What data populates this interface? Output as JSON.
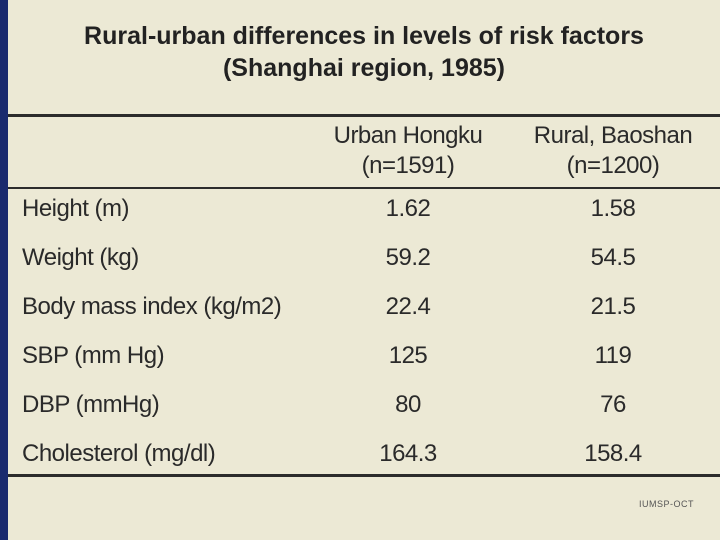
{
  "title": {
    "line1": "Rural-urban differences in levels of risk factors",
    "line2": "(Shanghai region, 1985)"
  },
  "columns": {
    "urban": {
      "line1": "Urban Hongku",
      "line2": "(n=1591)"
    },
    "rural": {
      "line1": "Rural, Baoshan",
      "line2": "(n=1200)"
    }
  },
  "rows": [
    {
      "label": "Height (m)",
      "urban": "1.62",
      "rural": "1.58"
    },
    {
      "label": "Weight (kg)",
      "urban": "59.2",
      "rural": "54.5"
    },
    {
      "label": "Body mass index (kg/m2)",
      "urban": "22.4",
      "rural": "21.5"
    },
    {
      "label": "SBP (mm Hg)",
      "urban": "125",
      "rural": "119"
    },
    {
      "label": "DBP (mmHg)",
      "urban": "80",
      "rural": "76"
    },
    {
      "label": "Cholesterol (mg/dl)",
      "urban": "164.3",
      "rural": "158.4"
    }
  ],
  "footer": {
    "mark": "IUMSP-OCT"
  }
}
